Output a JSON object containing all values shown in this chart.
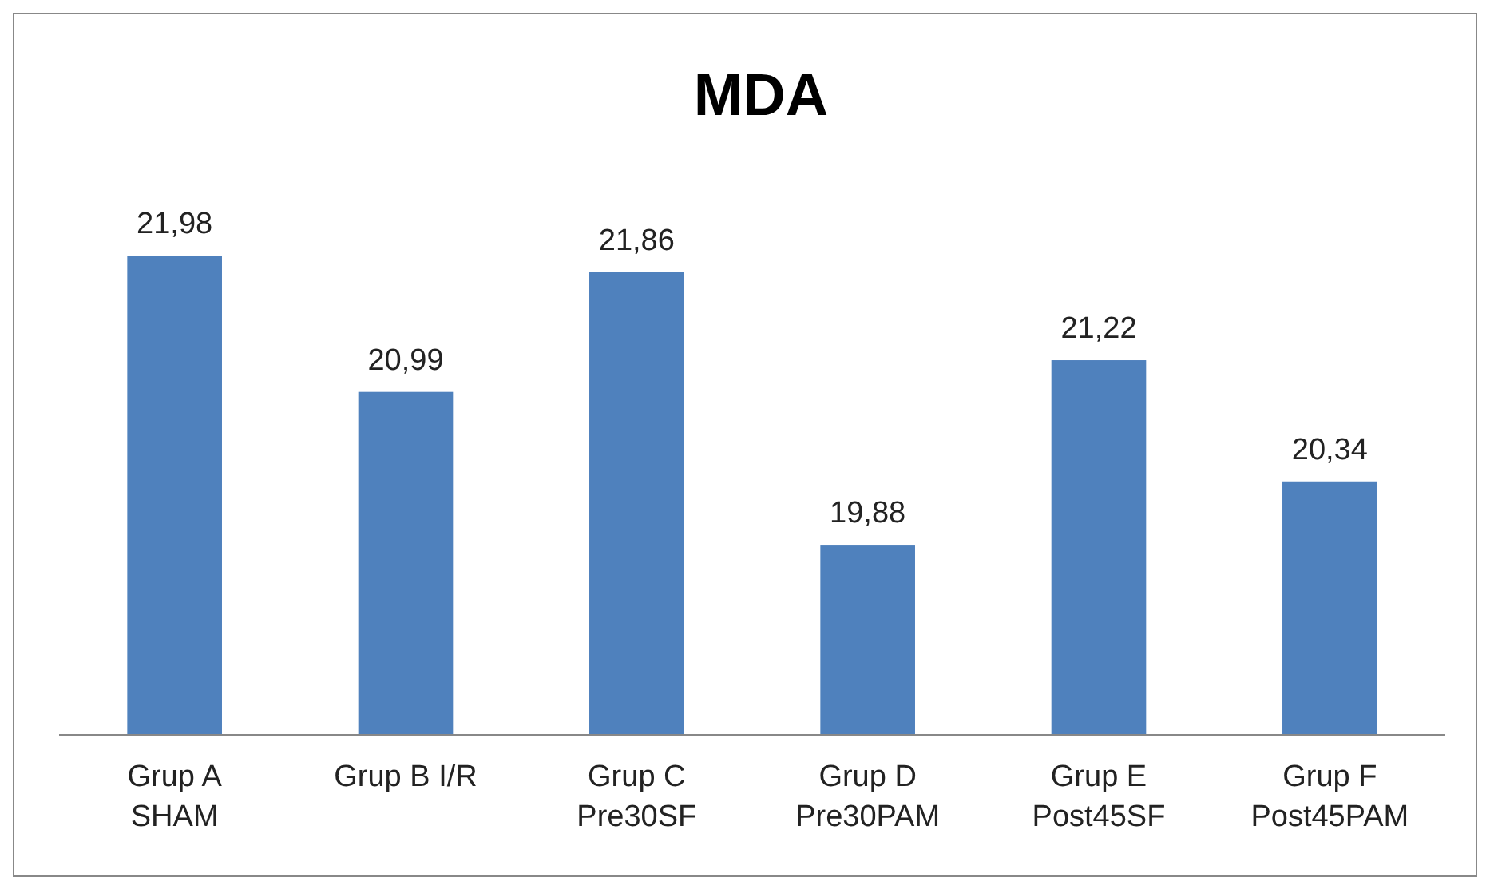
{
  "chart_data": {
    "type": "bar",
    "title": "MDA",
    "categories": [
      "Grup A\nSHAM",
      "Grup B I/R",
      "Grup C\nPre30SF",
      "Grup D\nPre30PAM",
      "Grup E\nPost45SF",
      "Grup F\nPost45PAM"
    ],
    "values": [
      21.98,
      20.99,
      21.86,
      19.88,
      21.22,
      20.34
    ],
    "value_labels": [
      "21,98",
      "20,99",
      "21,86",
      "19,88",
      "21,22",
      "20,34"
    ],
    "color": "#4f81bd",
    "ylim": [
      18.5,
      21.98
    ]
  }
}
